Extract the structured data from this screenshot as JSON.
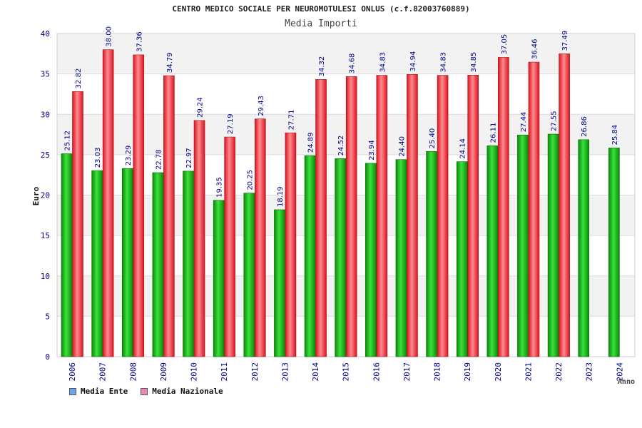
{
  "title": "CENTRO MEDICO SOCIALE PER NEUROMOTULESI ONLUS (c.f.82003760889)",
  "subtitle": "Media Importi",
  "legend": [
    {
      "name": "Media Ente",
      "swatch_color": "#6aa6e8"
    },
    {
      "name": "Media Nazionale",
      "swatch_color": "#e88ab8"
    }
  ],
  "colors": {
    "ente_dark": "#0a8a0a",
    "ente_light": "#3ce03c",
    "naz_dark": "#d8141e",
    "naz_light": "#ff8a90",
    "axis_text": "#00008b",
    "band": "#f2f2f2"
  },
  "chart_data": {
    "type": "bar",
    "xlabel": "Anno",
    "ylabel": "Euro",
    "ylim": [
      0,
      40
    ],
    "yticks": [
      0,
      5,
      10,
      15,
      20,
      25,
      30,
      35,
      40
    ],
    "categories": [
      "2006",
      "2007",
      "2008",
      "2009",
      "2010",
      "2011",
      "2012",
      "2013",
      "2014",
      "2015",
      "2016",
      "2017",
      "2018",
      "2019",
      "2020",
      "2021",
      "2022",
      "2023",
      "2024"
    ],
    "series": [
      {
        "name": "Media Ente",
        "values": [
          25.12,
          23.03,
          23.29,
          22.78,
          22.97,
          19.35,
          20.25,
          18.19,
          24.89,
          24.52,
          23.94,
          24.4,
          25.4,
          24.14,
          26.11,
          27.44,
          27.55,
          26.86,
          25.84
        ],
        "labels": [
          "25.12",
          "23.03",
          "23.29",
          "22.78",
          "22.97",
          "19.35",
          "20.25",
          "18.19",
          "24.89",
          "24.52",
          "23.94",
          "24.40",
          "25.40",
          "24.14",
          "26.11",
          "27.44",
          "27.55",
          "26.86",
          "25.84"
        ]
      },
      {
        "name": "Media Nazionale",
        "values": [
          32.82,
          38.0,
          37.36,
          34.79,
          29.24,
          27.19,
          29.43,
          27.71,
          34.32,
          34.68,
          34.83,
          34.94,
          34.83,
          34.85,
          37.05,
          36.46,
          37.49,
          null,
          null
        ],
        "labels": [
          "32.82",
          "38.00",
          "37.36",
          "34.79",
          "29.24",
          "27.19",
          "29.43",
          "27.71",
          "34.32",
          "34.68",
          "34.83",
          "34.94",
          "34.83",
          "34.85",
          "37.05",
          "36.46",
          "37.49",
          null,
          null
        ]
      }
    ]
  }
}
